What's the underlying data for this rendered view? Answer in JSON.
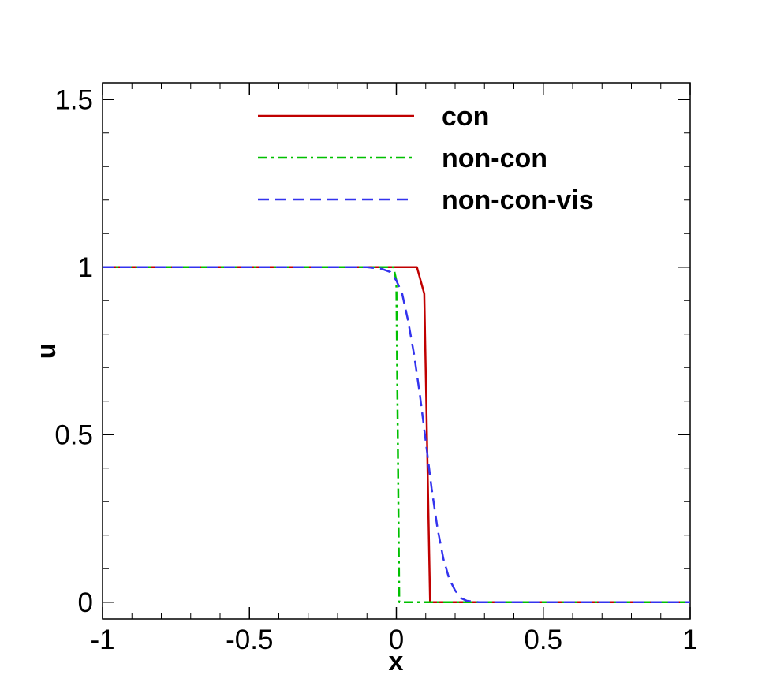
{
  "chart_data": {
    "type": "line",
    "xlabel": "x",
    "ylabel": "u",
    "xlim": [
      -1,
      1
    ],
    "ylim": [
      -0.05,
      1.55
    ],
    "x_ticks": [
      {
        "value": -1,
        "label": "-1"
      },
      {
        "value": -0.5,
        "label": "-0.5"
      },
      {
        "value": 0,
        "label": "0"
      },
      {
        "value": 0.5,
        "label": "0.5"
      },
      {
        "value": 1,
        "label": "1"
      }
    ],
    "y_ticks": [
      {
        "value": 0,
        "label": "0"
      },
      {
        "value": 0.5,
        "label": "0.5"
      },
      {
        "value": 1,
        "label": "1"
      },
      {
        "value": 1.5,
        "label": "1.5"
      }
    ],
    "x_minor_step": 0.1,
    "y_minor_step": 0.1,
    "grid": false,
    "legend_position": "top-center",
    "series": [
      {
        "name": "con",
        "color": "#c00000",
        "dash": "solid",
        "x": [
          -1.0,
          0.07,
          0.095,
          0.115,
          0.12,
          1.0
        ],
        "y": [
          1.0,
          1.0,
          0.92,
          0.0,
          0.0,
          0.0
        ]
      },
      {
        "name": "non-con",
        "color": "#00c000",
        "dash": "dashdot",
        "x": [
          -1.0,
          -0.01,
          0.0,
          0.01,
          1.0
        ],
        "y": [
          1.0,
          1.0,
          0.96,
          0.0,
          0.0
        ]
      },
      {
        "name": "non-con-vis",
        "color": "#3333ee",
        "dash": "dashed",
        "x": [
          -1.0,
          -0.1,
          -0.05,
          -0.02,
          0.0,
          0.02,
          0.04,
          0.06,
          0.08,
          0.1,
          0.12,
          0.14,
          0.16,
          0.18,
          0.2,
          0.22,
          0.24,
          0.28,
          1.0
        ],
        "y": [
          1.0,
          1.0,
          0.995,
          0.985,
          0.96,
          0.92,
          0.84,
          0.74,
          0.62,
          0.48,
          0.34,
          0.22,
          0.13,
          0.07,
          0.035,
          0.012,
          0.004,
          0.0,
          0.0
        ]
      }
    ]
  }
}
